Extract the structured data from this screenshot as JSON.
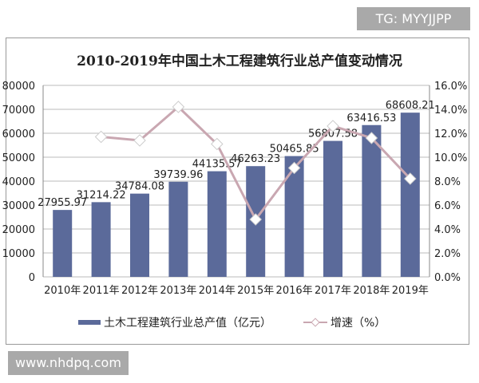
{
  "watermark_top": "TG: MYYJJPP",
  "watermark_bottom": "www.nhdpq.com",
  "chart_data": {
    "type": "bar+line",
    "title": "2010-2019年中国土木工程建筑行业总产值变动情况",
    "categories": [
      "2010年",
      "2011年",
      "2012年",
      "2013年",
      "2014年",
      "2015年",
      "2016年",
      "2017年",
      "2018年",
      "2019年"
    ],
    "series": [
      {
        "name": "土木工程建筑行业总产值（亿元）",
        "type": "bar",
        "axis": "left",
        "color": "#5b6a9a",
        "values": [
          27955.97,
          31214.22,
          34784.08,
          39739.96,
          44135.57,
          46263.23,
          50465.85,
          56807.58,
          63416.53,
          68608.21
        ],
        "labels": [
          "27955.97",
          "31214.22",
          "34784.08",
          "39739.96",
          "44135.57",
          "46263.23",
          "50465.85",
          "56807.58",
          "63416.53",
          "68608.21"
        ]
      },
      {
        "name": "增速（%）",
        "type": "line",
        "axis": "right",
        "color": "#c9a7b1",
        "values": [
          null,
          11.7,
          11.4,
          14.2,
          11.1,
          4.8,
          9.1,
          12.6,
          11.6,
          8.2
        ]
      }
    ],
    "ylim": [
      0,
      80000
    ],
    "yticks": [
      "0",
      "10000",
      "20000",
      "30000",
      "40000",
      "50000",
      "60000",
      "70000",
      "80000"
    ],
    "y2lim": [
      0,
      16
    ],
    "y2ticks": [
      "0.0%",
      "2.0%",
      "4.0%",
      "6.0%",
      "8.0%",
      "10.0%",
      "12.0%",
      "14.0%",
      "16.0%"
    ],
    "grid": true,
    "legend": "bottom"
  }
}
